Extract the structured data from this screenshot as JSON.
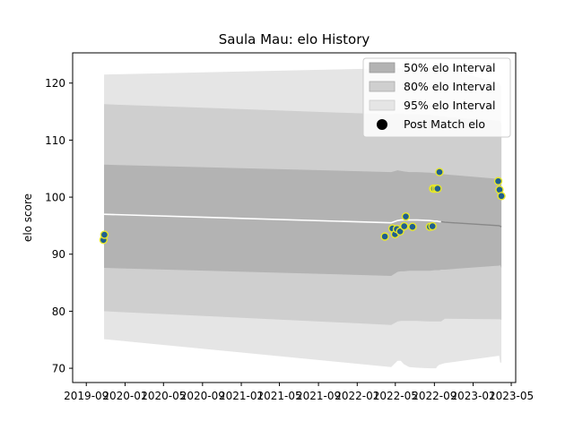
{
  "chart_data": {
    "type": "line",
    "title": "Saula Mau: elo History",
    "xlabel": "",
    "ylabel": "elo score",
    "xlim": [
      "2019-07-20",
      "2023-05-15"
    ],
    "ylim": [
      67.5,
      125.3
    ],
    "x_ticks": [
      "2019-09",
      "2020-01",
      "2020-05",
      "2020-09",
      "2021-01",
      "2021-05",
      "2021-09",
      "2022-01",
      "2022-05",
      "2022-09",
      "2023-01",
      "2023-05"
    ],
    "x_tick_labels": [
      "2019-09",
      "2020-01",
      "2020-05",
      "2020-09",
      "2021-01",
      "2021-05",
      "2021-09",
      "2022-01",
      "2022-05",
      "2022-09",
      "2023-01",
      "2023-05"
    ],
    "y_ticks": [
      70,
      80,
      90,
      100,
      110,
      120
    ],
    "y_tick_labels": [
      "70",
      "80",
      "90",
      "100",
      "110",
      "120"
    ],
    "legend": {
      "position": "top-right",
      "entries": [
        "50% elo Interval",
        "80% elo Interval",
        "95% elo Interval",
        "Post Match elo"
      ]
    },
    "grid": false,
    "intervals": {
      "x": [
        "2019-10-27",
        "2022-04-18",
        "2022-05-08",
        "2022-05-18",
        "2022-05-28",
        "2022-06-14",
        "2022-07-09",
        "2022-08-18",
        "2022-09-01",
        "2022-09-06",
        "2022-09-10",
        "2022-09-16",
        "2022-09-22",
        "2022-10-04",
        "2023-03-24",
        "2023-03-27",
        "2023-03-31"
      ],
      "median": [
        97.0,
        95.5,
        95.9,
        96.0,
        96.0,
        96.0,
        96.0,
        95.9,
        95.8,
        95.8,
        95.8,
        95.7,
        95.7,
        95.6,
        95.0,
        94.9,
        94.8
      ],
      "p50_low": [
        87.6,
        86.2,
        86.9,
        87.0,
        87.0,
        87.1,
        87.1,
        87.1,
        87.2,
        87.2,
        87.2,
        87.2,
        87.3,
        87.3,
        88.0,
        88.1,
        87.6
      ],
      "p50_high": [
        105.7,
        104.4,
        104.7,
        104.6,
        104.5,
        104.4,
        104.4,
        104.3,
        104.2,
        104.2,
        104.2,
        104.1,
        104.1,
        104.0,
        103.2,
        103.0,
        102.5
      ],
      "p80_low": [
        80.0,
        77.6,
        78.2,
        78.3,
        78.3,
        78.3,
        78.3,
        78.2,
        78.2,
        78.2,
        78.2,
        78.2,
        78.2,
        78.7,
        78.6,
        78.6,
        78.5
      ],
      "p80_high": [
        116.3,
        114.5,
        114.7,
        114.7,
        114.6,
        114.5,
        114.5,
        114.4,
        114.3,
        114.3,
        114.3,
        114.2,
        114.2,
        114.1,
        113.4,
        113.3,
        112.8
      ],
      "p95_low": [
        75.1,
        70.2,
        71.3,
        71.3,
        70.7,
        70.2,
        70.1,
        70.0,
        70.0,
        70.0,
        70.3,
        70.6,
        70.7,
        70.9,
        72.2,
        71.0,
        71.0
      ],
      "p95_high": [
        121.5,
        122.6,
        122.6,
        122.6,
        122.6,
        122.6,
        122.6,
        122.6,
        122.6,
        122.6,
        122.6,
        122.6,
        122.6,
        122.6,
        120.0,
        119.7,
        119.4
      ]
    },
    "post_match": {
      "x": [
        "2019-10-25",
        "2019-10-28",
        "2022-03-29",
        "2022-04-22",
        "2022-04-30",
        "2022-05-06",
        "2022-05-16",
        "2022-05-29",
        "2022-06-03",
        "2022-06-24",
        "2022-08-18",
        "2022-08-26",
        "2022-08-28",
        "2022-08-31",
        "2022-09-06",
        "2022-09-11",
        "2022-09-17",
        "2023-03-21",
        "2023-03-25",
        "2023-03-31"
      ],
      "y": [
        92.5,
        93.4,
        93.1,
        94.5,
        93.5,
        94.4,
        94.0,
        94.9,
        96.6,
        94.8,
        94.8,
        94.9,
        101.5,
        101.5,
        101.5,
        101.5,
        104.4,
        102.8,
        101.3,
        100.2
      ]
    },
    "colors": {
      "p50": "#b3b3b3",
      "p80": "#cfcfcf",
      "p95": "#e5e5e5",
      "median_line": "#ffffff",
      "median_line_right": "#888888",
      "point_fill": "#1f5f8f",
      "point_edge": "#e7e72a"
    }
  }
}
